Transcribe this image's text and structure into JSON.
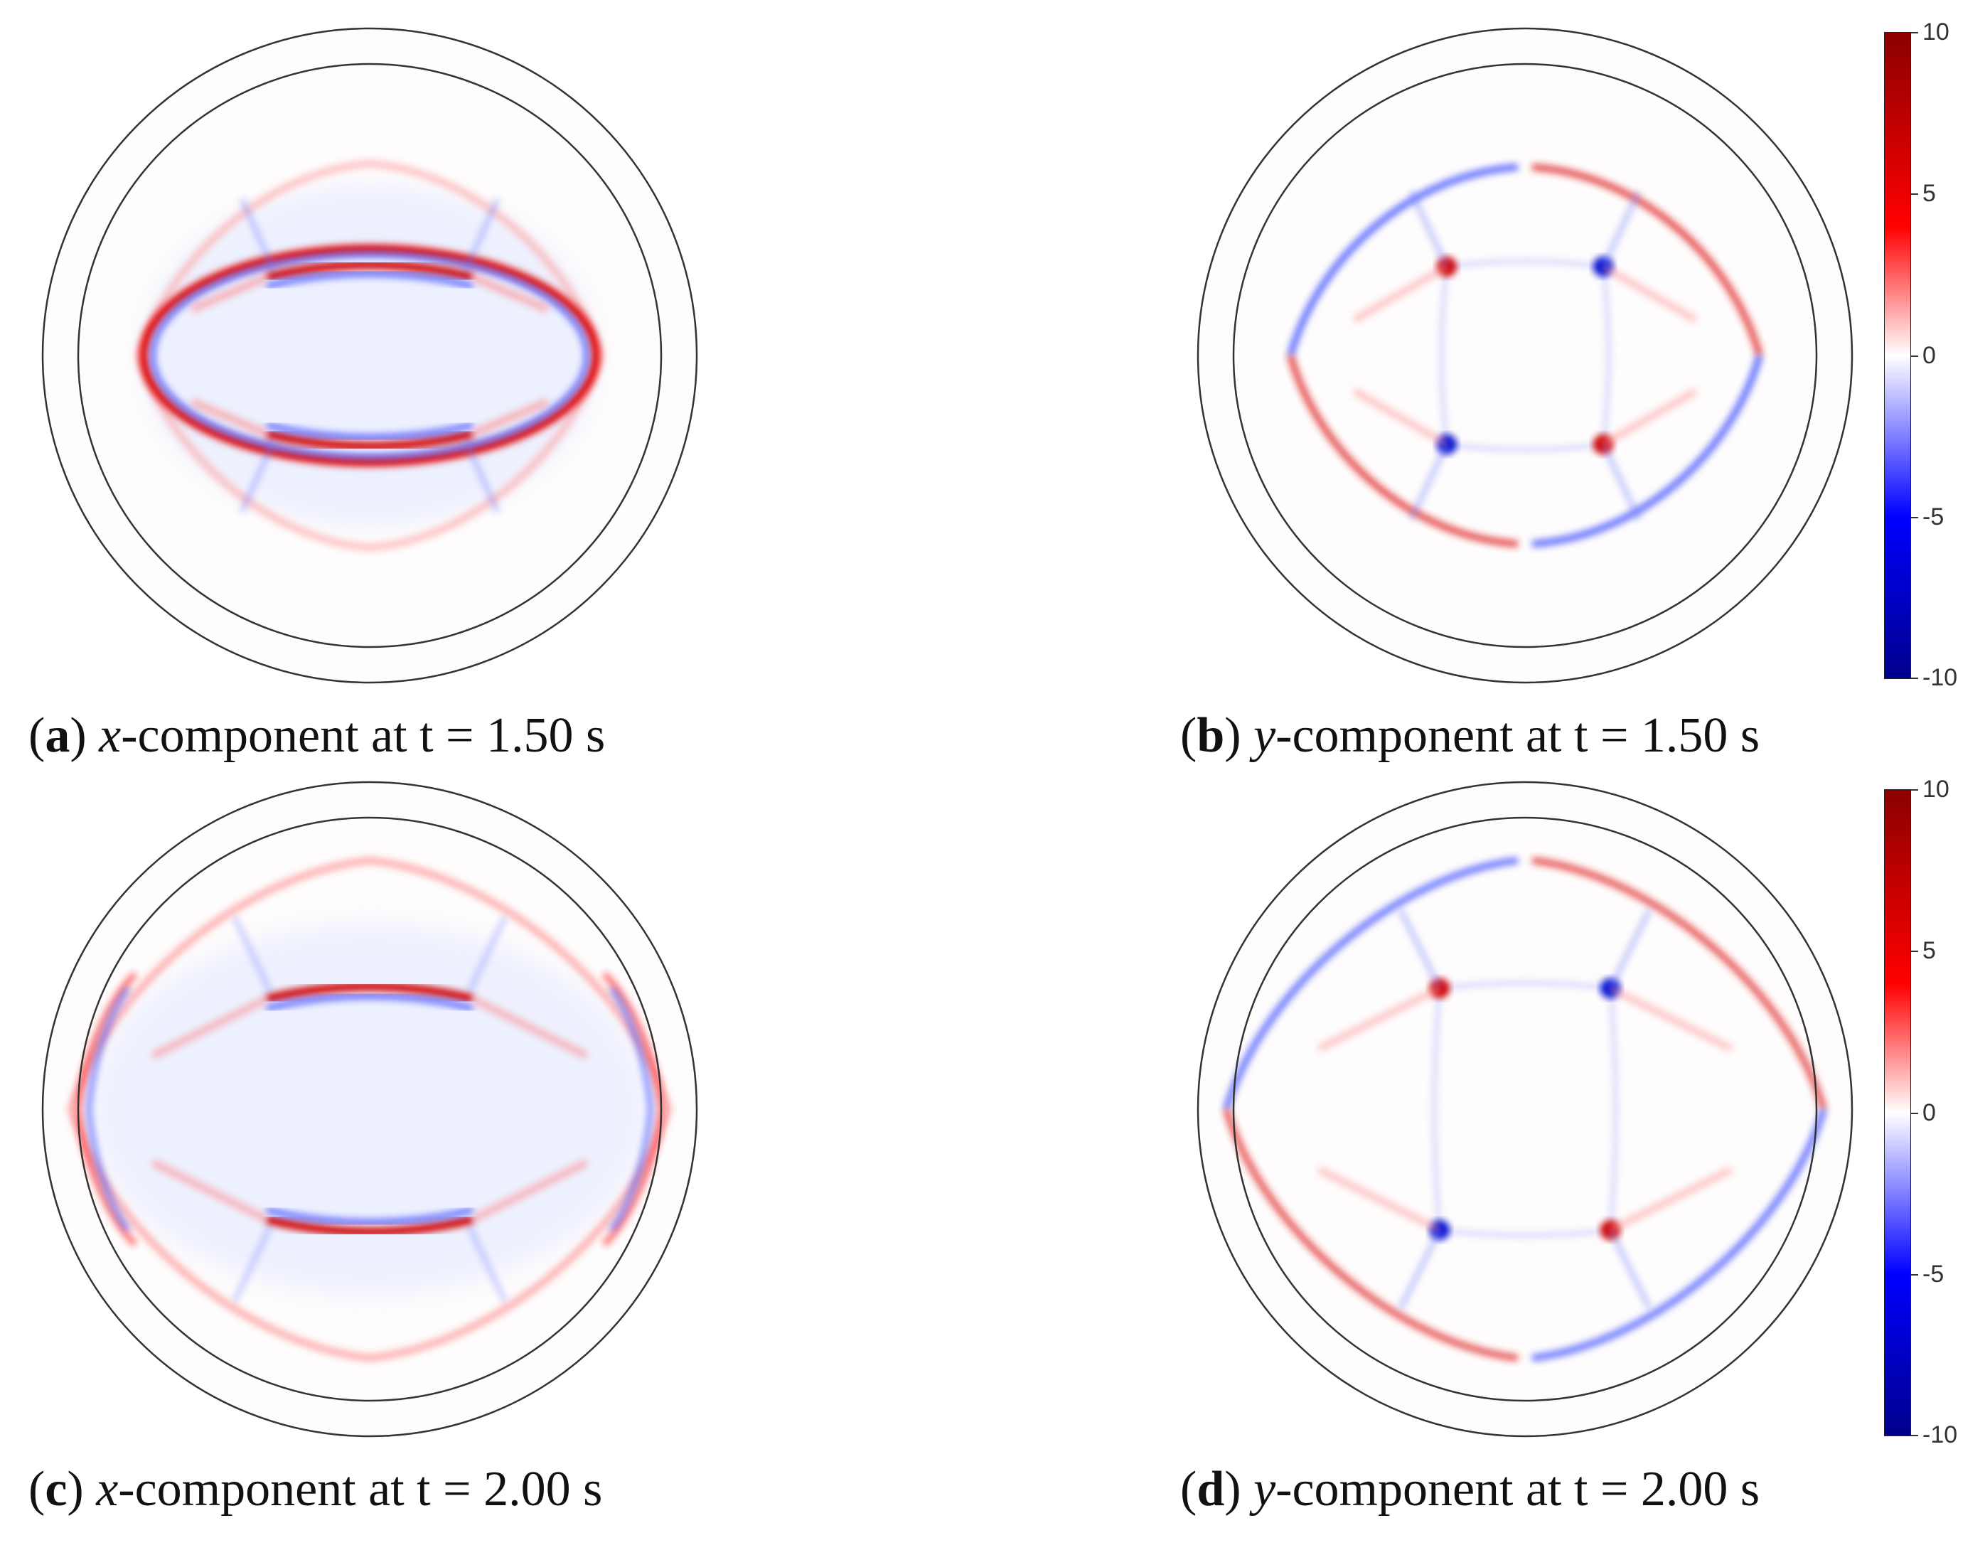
{
  "panels": [
    {
      "id": "a",
      "letter": "a",
      "component": "x",
      "text": "-component at t = 1.50 s"
    },
    {
      "id": "b",
      "letter": "b",
      "component": "y",
      "text": "-component at t = 1.50 s"
    },
    {
      "id": "c",
      "letter": "c",
      "component": "x",
      "text": "-component at t = 2.00 s"
    },
    {
      "id": "d",
      "letter": "d",
      "component": "y",
      "text": "-component at t = 2.00 s"
    }
  ],
  "colorbar": {
    "ticks": [
      "10",
      "5",
      "0",
      "-5",
      "-10"
    ],
    "range": [
      -10,
      10
    ],
    "colors": {
      "max": "#8b0000",
      "pos": "#ff0000",
      "zero": "#ffffff",
      "neg": "#0000ff",
      "min": "#00008b"
    }
  }
}
